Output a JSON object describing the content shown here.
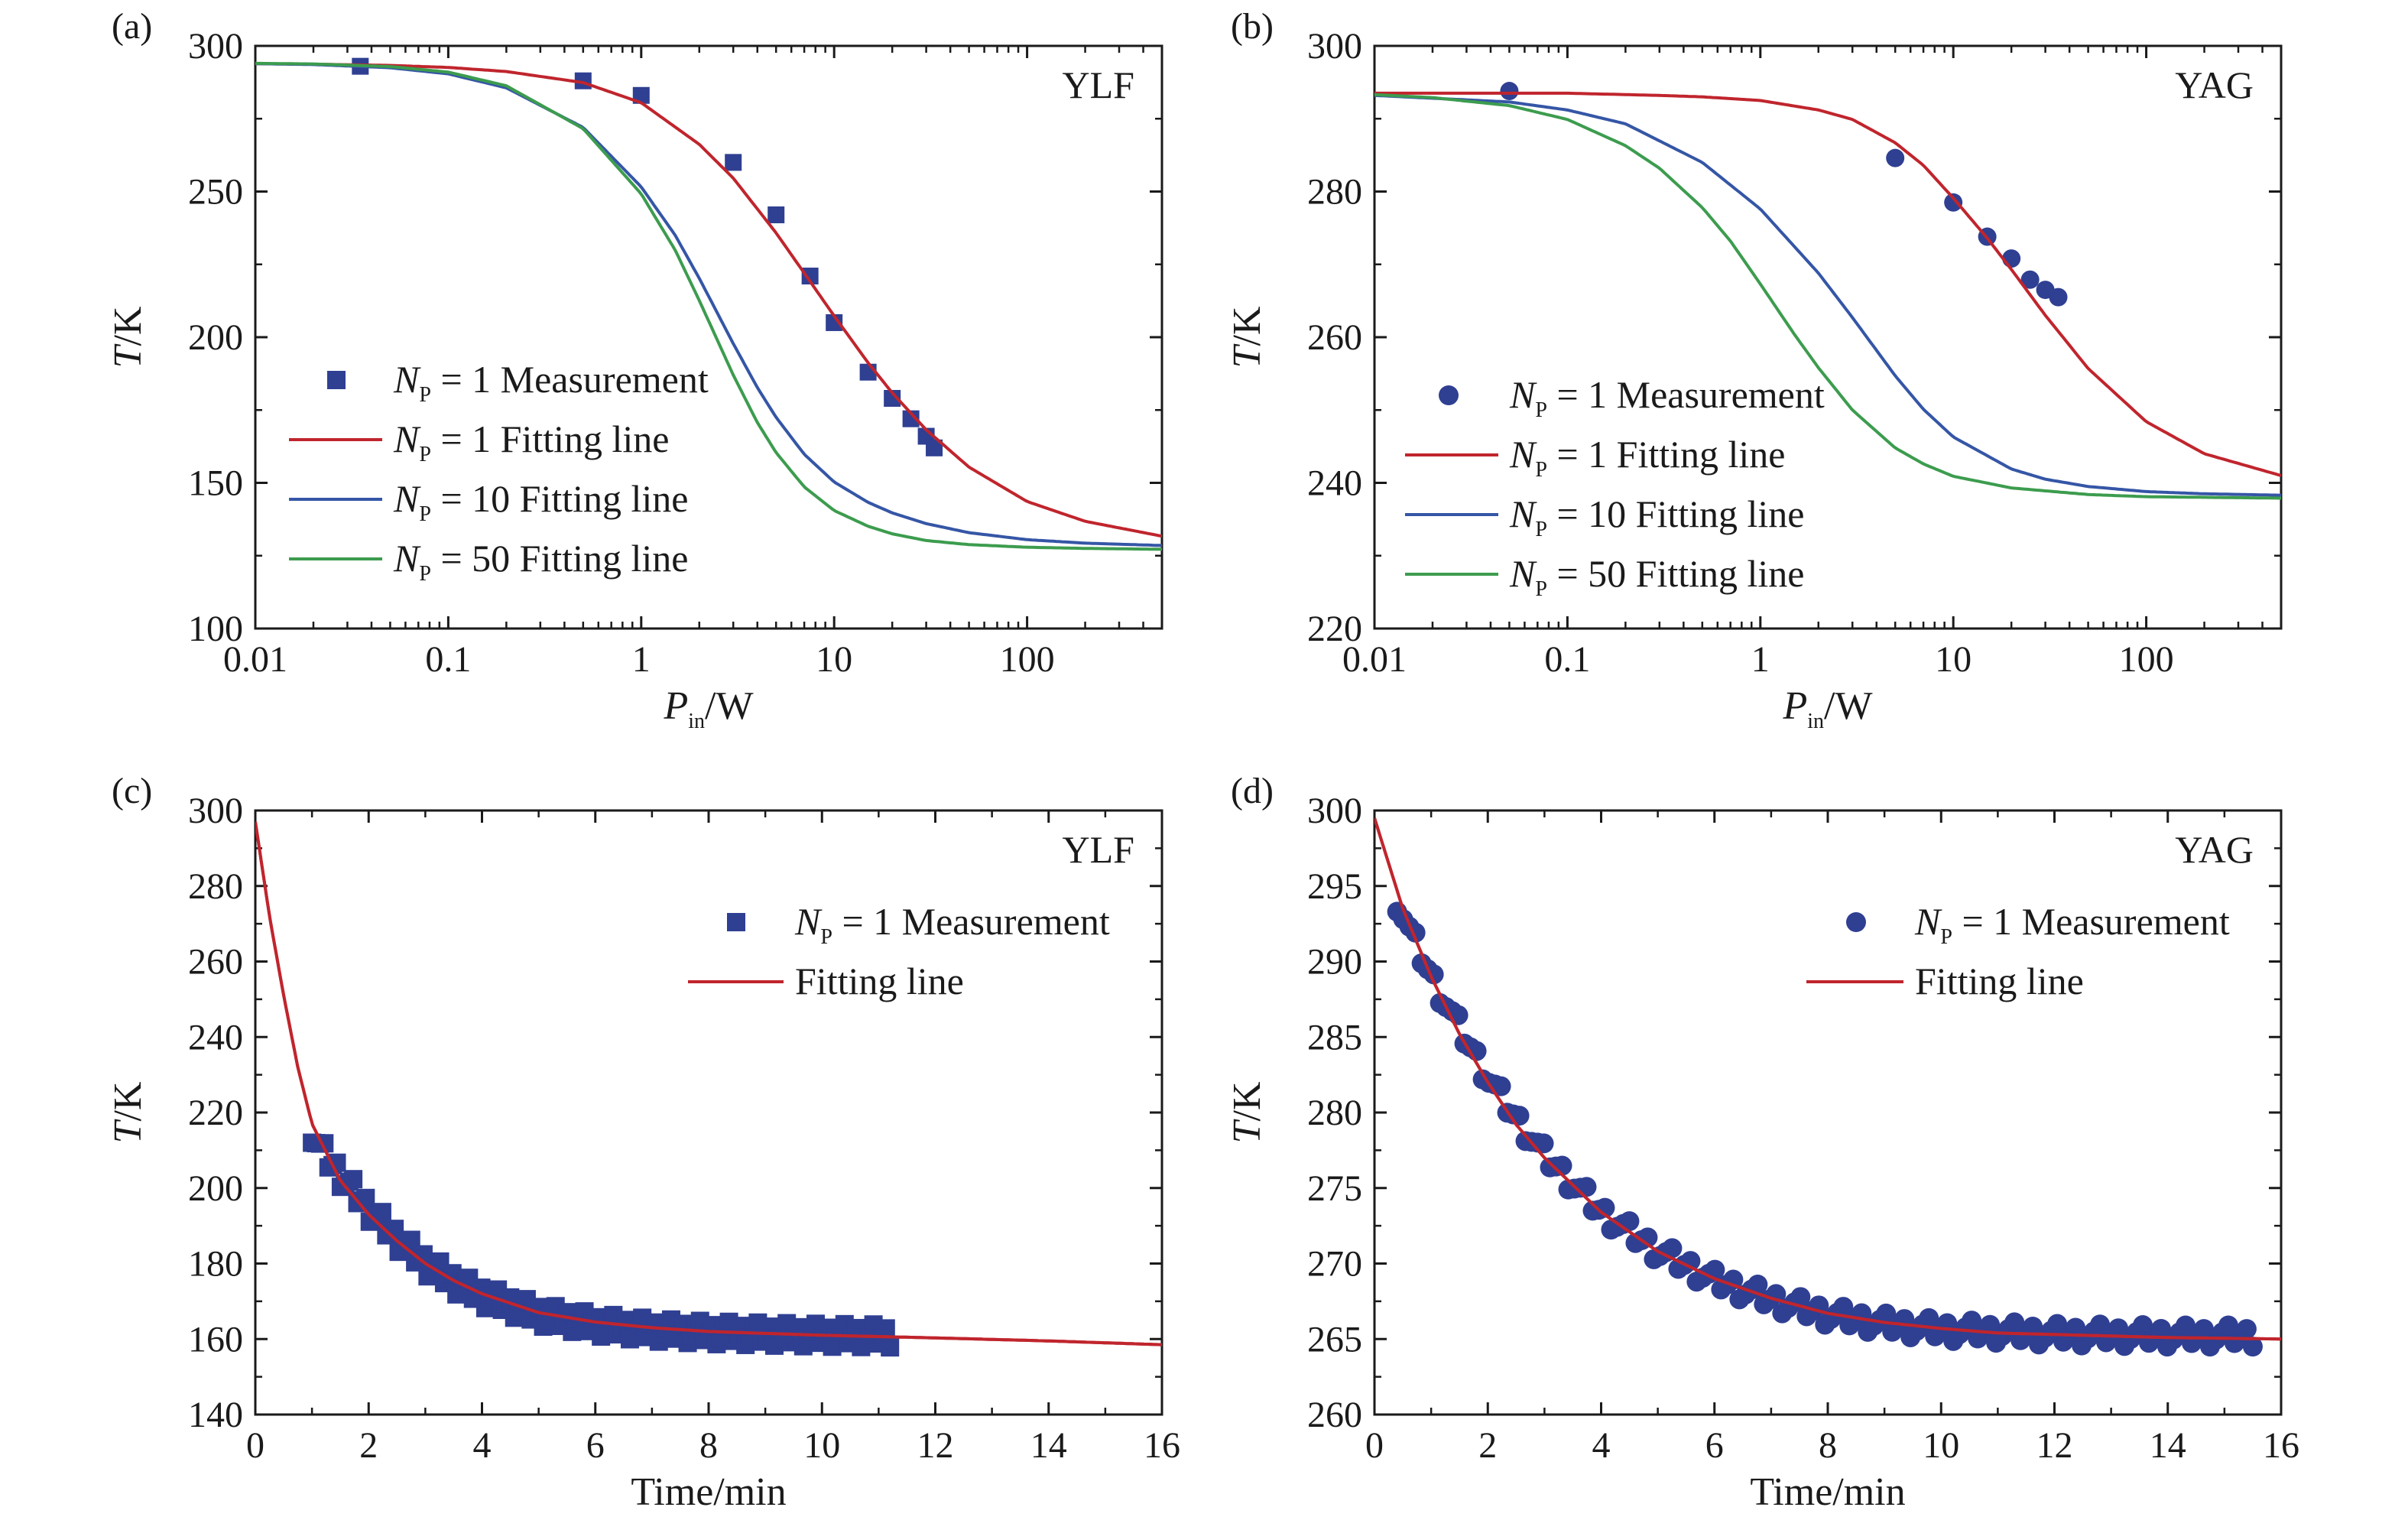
{
  "colors": {
    "measurement": "#2f3f92",
    "np1_fit": "#c0252d",
    "np10_fit": "#3556a6",
    "np50_fit": "#3c9c4e",
    "axis": "#1a1a1a"
  },
  "chart_data": [
    {
      "id": "a",
      "panel_label": "(a)",
      "annotation": "YLF",
      "type": "line",
      "xscale": "log",
      "xlim": [
        0.01,
        500
      ],
      "ylim": [
        100,
        300
      ],
      "xticks": [
        0.01,
        0.1,
        1,
        10,
        100
      ],
      "xtick_labels": [
        "0.01",
        "0.1",
        "1",
        "10",
        "100"
      ],
      "yticks": [
        100,
        150,
        200,
        250,
        300
      ],
      "ytick_labels": [
        "100",
        "150",
        "200",
        "250",
        "300"
      ],
      "xlabel": {
        "main": "P",
        "sub": "in",
        "rest": "/W"
      },
      "ylabel": {
        "main": "T",
        "rest": "/K"
      },
      "legend_position": "center-left",
      "grid": false,
      "series": [
        {
          "legend": {
            "main": "N",
            "sub": "P",
            "rest": " = 1 Measurement"
          },
          "kind": "scatter",
          "marker": "square",
          "color": "#2f3f92",
          "x": [
            0.035,
            0.5,
            1.0,
            3.0,
            5.0,
            7.5,
            10.0,
            15.0,
            20.0,
            25.0,
            30.0,
            33.0
          ],
          "y": [
            293,
            288,
            283,
            260,
            242,
            221,
            205,
            188,
            179,
            172,
            166,
            162
          ]
        },
        {
          "legend": {
            "main": "N",
            "sub": "P",
            "rest": " = 1 Fitting line"
          },
          "kind": "line",
          "color": "#c0252d",
          "x": [
            0.01,
            0.02,
            0.05,
            0.1,
            0.2,
            0.5,
            1,
            2,
            3,
            5,
            7,
            10,
            15,
            20,
            30,
            50,
            100,
            200,
            500
          ],
          "y": [
            293.9,
            293.7,
            293.3,
            292.6,
            291.2,
            287.4,
            280.5,
            266.2,
            254.6,
            235.8,
            222.0,
            207.3,
            191.2,
            180.9,
            168.2,
            155.4,
            143.6,
            136.8,
            131.7
          ]
        },
        {
          "legend": {
            "main": "N",
            "sub": "P",
            "rest": " = 10 Fitting line"
          },
          "kind": "line",
          "color": "#3556a6",
          "x": [
            0.01,
            0.02,
            0.05,
            0.1,
            0.2,
            0.5,
            1,
            1.5,
            2,
            3,
            4,
            5,
            7,
            10,
            15,
            20,
            30,
            50,
            100,
            200,
            500
          ],
          "y": [
            293.9,
            293.6,
            292.5,
            290.4,
            285.6,
            272.0,
            251.6,
            235.0,
            220.2,
            197.8,
            182.7,
            172.5,
            159.8,
            150.3,
            143.3,
            139.7,
            136.0,
            132.9,
            130.5,
            129.3,
            128.5
          ]
        },
        {
          "legend": {
            "main": "N",
            "sub": "P",
            "rest": " = 50 Fitting line"
          },
          "kind": "line",
          "color": "#3c9c4e",
          "x": [
            0.01,
            0.02,
            0.05,
            0.1,
            0.2,
            0.5,
            1,
            1.5,
            2,
            3,
            4,
            5,
            7,
            10,
            15,
            20,
            30,
            50,
            100,
            200,
            500
          ],
          "y": [
            294.0,
            293.8,
            292.9,
            291.0,
            286.3,
            271.6,
            249.2,
            229.9,
            212.6,
            187.0,
            170.7,
            160.4,
            148.6,
            140.5,
            135.1,
            132.5,
            130.2,
            128.8,
            127.9,
            127.5,
            127.2
          ]
        }
      ]
    },
    {
      "id": "b",
      "panel_label": "(b)",
      "annotation": "YAG",
      "type": "line",
      "xscale": "log",
      "xlim": [
        0.01,
        500
      ],
      "ylim": [
        220,
        300
      ],
      "xticks": [
        0.01,
        0.1,
        1,
        10,
        100
      ],
      "xtick_labels": [
        "0.01",
        "0.1",
        "1",
        "10",
        "100"
      ],
      "yticks": [
        220,
        240,
        260,
        280,
        300
      ],
      "ytick_labels": [
        "220",
        "240",
        "260",
        "280",
        "300"
      ],
      "xlabel": {
        "main": "P",
        "sub": "in",
        "rest": "/W"
      },
      "ylabel": {
        "main": "T",
        "rest": "/K"
      },
      "legend_position": "center-left",
      "grid": false,
      "series": [
        {
          "legend": {
            "main": "N",
            "sub": "P",
            "rest": " = 1 Measurement"
          },
          "kind": "scatter",
          "marker": "circle",
          "color": "#2f3f92",
          "x": [
            0.05,
            5.0,
            10.0,
            15.0,
            20.0,
            25.0,
            30.0,
            35.0
          ],
          "y": [
            293.8,
            284.6,
            278.5,
            273.8,
            270.8,
            267.9,
            266.5,
            265.5
          ]
        },
        {
          "legend": {
            "main": "N",
            "sub": "P",
            "rest": " = 1 Fitting line"
          },
          "kind": "line",
          "color": "#c0252d",
          "x": [
            0.01,
            0.1,
            0.3,
            0.5,
            1,
            2,
            3,
            5,
            7,
            10,
            15,
            20,
            30,
            50,
            100,
            200,
            500
          ],
          "y": [
            293.5,
            293.5,
            293.2,
            293.0,
            292.5,
            291.2,
            289.9,
            286.7,
            283.6,
            279.1,
            273.6,
            269.3,
            263.0,
            255.7,
            248.4,
            244.0,
            241.0
          ]
        },
        {
          "legend": {
            "main": "N",
            "sub": "P",
            "rest": " = 10 Fitting line"
          },
          "kind": "line",
          "color": "#3556a6",
          "x": [
            0.01,
            0.05,
            0.1,
            0.2,
            0.5,
            1,
            2,
            3,
            5,
            7,
            10,
            20,
            30,
            50,
            100,
            200,
            500
          ],
          "y": [
            293.2,
            292.3,
            291.2,
            289.3,
            284.0,
            277.6,
            268.8,
            262.7,
            254.7,
            250.1,
            246.3,
            241.9,
            240.5,
            239.5,
            238.8,
            238.5,
            238.3
          ]
        },
        {
          "legend": {
            "main": "N",
            "sub": "P",
            "rest": " = 50 Fitting line"
          },
          "kind": "line",
          "color": "#3c9c4e",
          "x": [
            0.01,
            0.02,
            0.05,
            0.1,
            0.2,
            0.3,
            0.5,
            0.7,
            1,
            1.5,
            2,
            3,
            5,
            7,
            10,
            20,
            50,
            100,
            500
          ],
          "y": [
            293.3,
            292.9,
            291.8,
            289.9,
            286.3,
            283.2,
            277.8,
            273.2,
            267.3,
            260.4,
            255.8,
            250.0,
            244.8,
            242.6,
            240.9,
            239.3,
            238.4,
            238.1,
            237.9
          ]
        }
      ]
    },
    {
      "id": "c",
      "panel_label": "(c)",
      "annotation": "YLF",
      "type": "line",
      "xscale": "linear",
      "xlim": [
        0,
        16
      ],
      "ylim": [
        140,
        300
      ],
      "xticks": [
        0,
        2,
        4,
        6,
        8,
        10,
        12,
        14,
        16
      ],
      "xtick_labels": [
        "0",
        "2",
        "4",
        "6",
        "8",
        "10",
        "12",
        "14",
        "16"
      ],
      "yticks": [
        140,
        160,
        180,
        200,
        220,
        240,
        260,
        280,
        300
      ],
      "ytick_labels": [
        "140",
        "160",
        "180",
        "200",
        "220",
        "240",
        "260",
        "280",
        "300"
      ],
      "xlabel": {
        "main": "Time/min"
      },
      "ylabel": {
        "main": "T",
        "rest": "/K"
      },
      "legend_position": "top-right",
      "grid": false,
      "series": [
        {
          "legend": {
            "main": "N",
            "sub": "P",
            "rest": " = 1 Measurement"
          },
          "kind": "band",
          "marker": "square",
          "color": "#2f3f92",
          "band_halfwidth": 3,
          "x": [
            1.0,
            1.2,
            1.5,
            2.0,
            2.5,
            3.0,
            3.5,
            4.0,
            5.0,
            6.0,
            7.0,
            8.0,
            9.0,
            10.0,
            11.2
          ],
          "y": [
            215.0,
            209.2,
            203.5,
            194.4,
            186.5,
            180.0,
            175.2,
            171.5,
            166.5,
            163.8,
            162.4,
            161.7,
            161.3,
            161.0,
            160.8
          ]
        },
        {
          "legend": {
            "main": "Fitting line"
          },
          "kind": "line",
          "color": "#c0252d",
          "x": [
            0,
            0.25,
            0.5,
            0.75,
            1.0,
            1.5,
            2.0,
            2.5,
            3.0,
            3.5,
            4.0,
            5.0,
            6.0,
            7.0,
            8.0,
            10.0,
            12.0,
            14.0,
            16.0
          ],
          "y": [
            297,
            272,
            251,
            232,
            217,
            202,
            193,
            186,
            180,
            175.5,
            172,
            167,
            164.5,
            163,
            162,
            161,
            160.3,
            159.5,
            158.5
          ]
        }
      ]
    },
    {
      "id": "d",
      "panel_label": "(d)",
      "annotation": "YAG",
      "type": "line",
      "xscale": "linear",
      "xlim": [
        0,
        16
      ],
      "ylim": [
        260,
        300
      ],
      "xticks": [
        0,
        2,
        4,
        6,
        8,
        10,
        12,
        14,
        16
      ],
      "xtick_labels": [
        "0",
        "2",
        "4",
        "6",
        "8",
        "10",
        "12",
        "14",
        "16"
      ],
      "yticks": [
        260,
        265,
        270,
        275,
        280,
        285,
        290,
        295,
        300
      ],
      "ytick_labels": [
        "260",
        "265",
        "270",
        "275",
        "280",
        "285",
        "290",
        "295",
        "300"
      ],
      "xlabel": {
        "main": "Time/min"
      },
      "ylabel": {
        "main": "T",
        "rest": "/K"
      },
      "legend_position": "top-right",
      "grid": false,
      "series": [
        {
          "legend": {
            "main": "N",
            "sub": "P",
            "rest": " = 1 Measurement"
          },
          "kind": "band",
          "marker": "circle",
          "color": "#2f3f92",
          "band_halfwidth": 0.7,
          "x": [
            0.4,
            0.6,
            0.8,
            1.0,
            1.5,
            2.0,
            2.5,
            3.0,
            4.0,
            5.0,
            6.0,
            7.0,
            8.0,
            9.0,
            10.0,
            12.0,
            14.0,
            15.5
          ],
          "y": [
            294.0,
            292.2,
            290.6,
            289.0,
            285.6,
            282.3,
            279.6,
            277.2,
            273.4,
            270.8,
            268.9,
            267.6,
            266.6,
            266.0,
            265.6,
            265.3,
            265.2,
            265.2
          ]
        },
        {
          "legend": {
            "main": "Fitting line"
          },
          "kind": "line",
          "color": "#c0252d",
          "x": [
            0,
            0.5,
            1.0,
            1.5,
            2.0,
            2.5,
            3.0,
            4.0,
            5.0,
            6.0,
            7.0,
            8.0,
            9.0,
            10.0,
            11.0,
            12.0,
            14.0,
            16.0
          ],
          "y": [
            299.5,
            293.5,
            289.0,
            285.2,
            282.0,
            279.2,
            277.0,
            273.4,
            270.8,
            269.0,
            267.7,
            266.7,
            266.1,
            265.7,
            265.4,
            265.3,
            265.1,
            265.0
          ]
        }
      ]
    }
  ]
}
